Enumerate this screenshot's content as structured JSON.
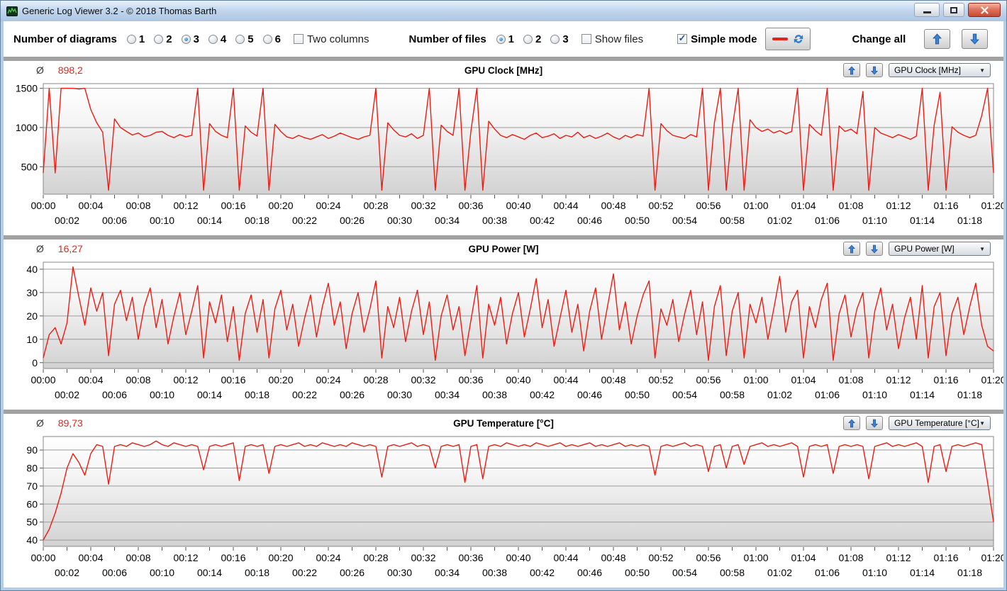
{
  "window": {
    "title": "Generic Log Viewer 3.2 - © 2018 Thomas Barth",
    "minimize_icon": "minimize",
    "maximize_icon": "maximize",
    "close_icon": "close"
  },
  "toolbar": {
    "diagrams_label": "Number of diagrams",
    "diagram_options": [
      "1",
      "2",
      "3",
      "4",
      "5",
      "6"
    ],
    "diagrams_selected": "3",
    "two_columns_label": "Two columns",
    "two_columns_checked": false,
    "files_label": "Number of files",
    "file_options": [
      "1",
      "2",
      "3"
    ],
    "files_selected": "1",
    "show_files_label": "Show files",
    "show_files_checked": false,
    "simple_mode_label": "Simple mode",
    "simple_mode_checked": true,
    "line_style_button_icons": [
      "red-line-sample",
      "refresh-arrows"
    ],
    "change_all_label": "Change all",
    "up_button_icon": "arrow-up",
    "down_button_icon": "arrow-down"
  },
  "chart_ui": {
    "avg_symbol": "Ø"
  },
  "colors": {
    "line_red": "#ee1c12",
    "avg_red": "#e4251c",
    "grid_gray": "#9b9b9b",
    "separator_gray": "#a2a2a2",
    "titlebar_blue": "#b6cdea"
  },
  "x_axis": {
    "tick_interval_min": 2,
    "tick_labels": [
      "00:00",
      "00:02",
      "00:04",
      "00:06",
      "00:08",
      "00:10",
      "00:12",
      "00:14",
      "00:16",
      "00:18",
      "00:20",
      "00:22",
      "00:24",
      "00:26",
      "00:28",
      "00:30",
      "00:32",
      "00:34",
      "00:36",
      "00:38",
      "00:40",
      "00:42",
      "00:44",
      "00:46",
      "00:48",
      "00:50",
      "00:52",
      "00:54",
      "00:56",
      "00:58",
      "01:00",
      "01:02",
      "01:04",
      "01:06",
      "01:08",
      "01:10",
      "01:12",
      "01:14",
      "01:16",
      "01:18",
      "01:20"
    ]
  },
  "chart_data": [
    {
      "type": "line",
      "title": "GPU Clock [MHz]",
      "channel_dropdown": "GPU Clock [MHz]",
      "average_display": "898,2",
      "unit": "MHz",
      "x_start_min": 0,
      "x_step_min": 0.5,
      "x_end_min": 80,
      "ylim": [
        150,
        1560
      ],
      "yticks": [
        500,
        1000,
        1500
      ],
      "line_color": "#ee1c12",
      "values": [
        420,
        1500,
        420,
        1500,
        1500,
        1500,
        1490,
        1500,
        1230,
        1060,
        940,
        200,
        1110,
        1000,
        950,
        905,
        930,
        880,
        900,
        940,
        950,
        900,
        870,
        910,
        880,
        900,
        1500,
        200,
        1050,
        950,
        900,
        870,
        1500,
        200,
        1020,
        940,
        890,
        1500,
        200,
        1040,
        950,
        880,
        860,
        900,
        870,
        850,
        880,
        910,
        860,
        890,
        930,
        900,
        870,
        850,
        880,
        900,
        1500,
        200,
        1060,
        970,
        900,
        880,
        920,
        860,
        900,
        1500,
        200,
        1030,
        950,
        900,
        1500,
        200,
        950,
        1500,
        200,
        1080,
        980,
        900,
        870,
        910,
        880,
        850,
        900,
        930,
        870,
        890,
        920,
        860,
        900,
        880,
        940,
        870,
        900,
        860,
        890,
        930,
        880,
        850,
        900,
        870,
        910,
        890,
        1500,
        200,
        1050,
        960,
        900,
        880,
        860,
        910,
        880,
        1500,
        200,
        1060,
        1500,
        200,
        990,
        1500,
        200,
        1100,
        1000,
        950,
        980,
        930,
        960,
        920,
        950,
        1500,
        200,
        1040,
        960,
        900,
        1500,
        200,
        1020,
        950,
        980,
        920,
        1460,
        200,
        1000,
        930,
        900,
        870,
        910,
        880,
        850,
        890,
        1500,
        200,
        1030,
        1450,
        200,
        1010,
        940,
        900,
        870,
        900,
        1150,
        1500,
        420
      ]
    },
    {
      "type": "line",
      "title": "GPU Power [W]",
      "channel_dropdown": "GPU Power [W]",
      "average_display": "16,27",
      "unit": "W",
      "x_start_min": 0,
      "x_step_min": 0.5,
      "x_end_min": 80,
      "ylim": [
        -2.5,
        43
      ],
      "yticks": [
        0,
        10,
        20,
        30,
        40
      ],
      "line_color": "#ee1c12",
      "values": [
        2,
        12,
        15,
        8,
        17,
        41,
        28,
        16,
        32,
        22,
        30,
        3,
        25,
        31,
        18,
        28,
        10,
        24,
        32,
        15,
        27,
        8,
        20,
        30,
        12,
        22,
        33,
        2,
        26,
        17,
        29,
        9,
        24,
        1,
        21,
        29,
        13,
        27,
        2,
        23,
        31,
        14,
        25,
        7,
        19,
        29,
        11,
        24,
        34,
        16,
        26,
        6,
        21,
        30,
        13,
        23,
        35,
        2,
        24,
        15,
        28,
        9,
        22,
        31,
        12,
        26,
        1,
        20,
        29,
        14,
        24,
        3,
        18,
        33,
        2,
        25,
        16,
        28,
        8,
        21,
        30,
        11,
        23,
        36,
        15,
        27,
        7,
        19,
        31,
        13,
        25,
        5,
        22,
        32,
        10,
        24,
        38,
        14,
        26,
        8,
        20,
        29,
        35,
        2,
        23,
        16,
        27,
        9,
        21,
        31,
        12,
        26,
        1,
        24,
        33,
        3,
        22,
        30,
        2,
        25,
        17,
        28,
        10,
        23,
        37,
        13,
        26,
        31,
        2,
        24,
        15,
        27,
        34,
        1,
        21,
        29,
        11,
        23,
        30,
        2,
        22,
        32,
        14,
        25,
        6,
        19,
        28,
        10,
        33,
        2,
        24,
        30,
        3,
        21,
        28,
        12,
        24,
        34,
        16,
        7,
        5
      ]
    },
    {
      "type": "line",
      "title": "GPU Temperature [°C]",
      "channel_dropdown": "GPU Temperature [°C]",
      "average_display": "89,73",
      "unit": "°C",
      "x_start_min": 0,
      "x_step_min": 0.5,
      "x_end_min": 80,
      "ylim": [
        36.5,
        97.5
      ],
      "yticks": [
        40,
        50,
        60,
        70,
        80,
        90
      ],
      "line_color": "#ee1c12",
      "values": [
        40,
        46,
        55,
        66,
        80,
        88,
        83,
        76,
        88,
        93,
        92,
        71,
        92,
        93,
        92,
        94,
        93,
        92,
        93,
        95,
        93,
        92,
        94,
        93,
        92,
        93,
        92,
        79,
        92,
        93,
        92,
        93,
        94,
        73,
        92,
        93,
        92,
        93,
        77,
        92,
        93,
        92,
        93,
        94,
        92,
        93,
        92,
        94,
        93,
        92,
        93,
        92,
        94,
        93,
        92,
        93,
        92,
        75,
        92,
        93,
        92,
        93,
        94,
        92,
        93,
        92,
        80,
        92,
        93,
        92,
        93,
        72,
        92,
        93,
        74,
        92,
        93,
        92,
        94,
        93,
        92,
        93,
        92,
        94,
        93,
        92,
        93,
        94,
        92,
        93,
        92,
        93,
        94,
        92,
        93,
        92,
        93,
        94,
        92,
        93,
        92,
        93,
        92,
        76,
        92,
        93,
        92,
        93,
        94,
        92,
        93,
        92,
        78,
        92,
        93,
        80,
        92,
        93,
        82,
        92,
        93,
        94,
        92,
        93,
        92,
        93,
        94,
        92,
        75,
        92,
        93,
        92,
        93,
        77,
        92,
        93,
        92,
        93,
        92,
        74,
        92,
        93,
        94,
        92,
        93,
        92,
        93,
        94,
        92,
        72,
        92,
        93,
        78,
        92,
        93,
        92,
        93,
        94,
        93,
        72,
        50
      ]
    }
  ]
}
